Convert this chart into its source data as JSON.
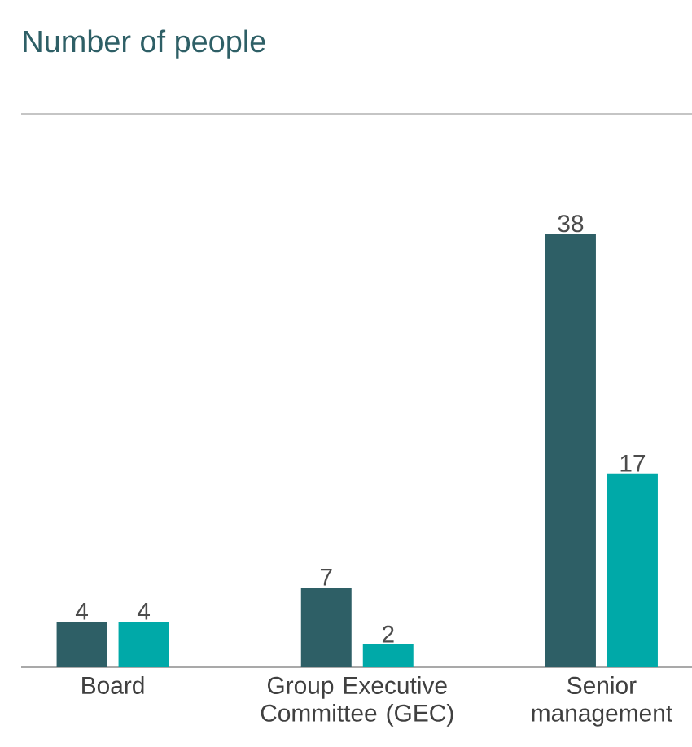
{
  "chart_data": {
    "type": "bar",
    "subtitle": "Number of people",
    "categories": [
      "Board",
      "Group Executive Committee (GEC)",
      "Senior management"
    ],
    "series": [
      {
        "color": "#2e5f66",
        "values": [
          4,
          7,
          38
        ]
      },
      {
        "color": "#00a9a8",
        "values": [
          4,
          2,
          17
        ]
      }
    ],
    "data_labels": true
  }
}
